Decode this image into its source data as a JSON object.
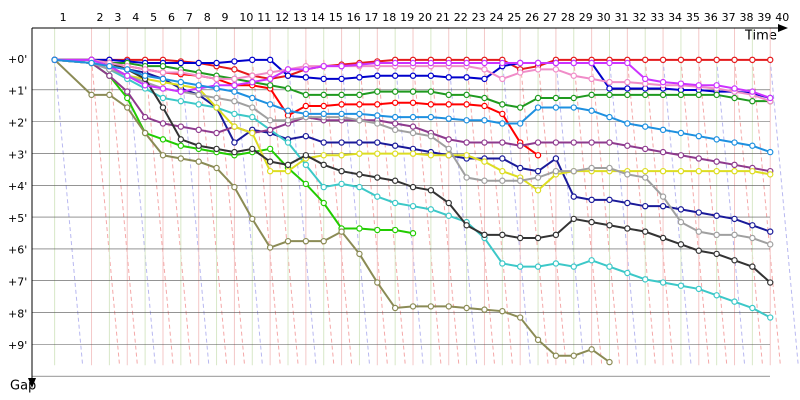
{
  "chart_data": {
    "type": "line",
    "x_label": "Time",
    "y_label": "Gap",
    "xlim": [
      0,
      64.5
    ],
    "ylim": [
      -1,
      10
    ],
    "x": [
      1.9,
      5,
      6.5,
      8,
      9.5,
      11,
      12.5,
      14,
      15.5,
      17,
      18.5,
      20,
      21.5,
      23,
      24.5,
      26,
      27.5,
      29,
      30.5,
      32,
      33.5,
      35,
      36.5,
      38,
      39.5,
      41,
      42.5,
      44,
      45.5,
      47,
      48.5,
      50,
      51.5,
      53,
      54.5,
      56,
      57.5,
      59,
      60.5,
      62
    ],
    "xticks": [
      {
        "value": 1.9,
        "label": "1"
      },
      {
        "value": 5,
        "label": "2"
      },
      {
        "value": 6.5,
        "label": "3"
      },
      {
        "value": 8,
        "label": "4"
      },
      {
        "value": 9.5,
        "label": "5"
      },
      {
        "value": 11,
        "label": "6"
      },
      {
        "value": 12.5,
        "label": "7"
      },
      {
        "value": 14,
        "label": "8"
      },
      {
        "value": 15.5,
        "label": "9"
      },
      {
        "value": 17,
        "label": "10"
      },
      {
        "value": 18.5,
        "label": "11"
      },
      {
        "value": 20,
        "label": "12"
      },
      {
        "value": 21.5,
        "label": "13"
      },
      {
        "value": 23,
        "label": "14"
      },
      {
        "value": 24.5,
        "label": "15"
      },
      {
        "value": 26,
        "label": "16"
      },
      {
        "value": 27.5,
        "label": "17"
      },
      {
        "value": 29,
        "label": "18"
      },
      {
        "value": 30.5,
        "label": "19"
      },
      {
        "value": 32,
        "label": "20"
      },
      {
        "value": 33.5,
        "label": "21"
      },
      {
        "value": 35,
        "label": "22"
      },
      {
        "value": 36.5,
        "label": "23"
      },
      {
        "value": 38,
        "label": "24"
      },
      {
        "value": 39.5,
        "label": "25"
      },
      {
        "value": 41,
        "label": "26"
      },
      {
        "value": 42.5,
        "label": "27"
      },
      {
        "value": 44,
        "label": "28"
      },
      {
        "value": 45.5,
        "label": "29"
      },
      {
        "value": 47,
        "label": "30"
      },
      {
        "value": 48.5,
        "label": "31"
      },
      {
        "value": 50,
        "label": "32"
      },
      {
        "value": 51.5,
        "label": "33"
      },
      {
        "value": 53,
        "label": "34"
      },
      {
        "value": 54.5,
        "label": "35"
      },
      {
        "value": 56,
        "label": "36"
      },
      {
        "value": 57.5,
        "label": "37"
      },
      {
        "value": 59,
        "label": "38"
      },
      {
        "value": 60.5,
        "label": "39"
      },
      {
        "value": 62,
        "label": "40"
      }
    ],
    "yticks": [
      {
        "value": 0,
        "label": "+0'"
      },
      {
        "value": 1,
        "label": "+1'"
      },
      {
        "value": 2,
        "label": "+2'"
      },
      {
        "value": 3,
        "label": "+3'"
      },
      {
        "value": 4,
        "label": "+4'"
      },
      {
        "value": 5,
        "label": "+5'"
      },
      {
        "value": 6,
        "label": "+6'"
      },
      {
        "value": 7,
        "label": "+7'"
      },
      {
        "value": 8,
        "label": "+8'"
      },
      {
        "value": 9,
        "label": "+9'"
      }
    ],
    "grid": true,
    "series": [
      {
        "color": "#e41a1c",
        "values": [
          0,
          0,
          0,
          0,
          0,
          0,
          0.05,
          0.1,
          0.2,
          0.3,
          0.5,
          0.6,
          0.5,
          0.3,
          0.2,
          0.15,
          0.1,
          0.05,
          0,
          0,
          0,
          0,
          0,
          0,
          0,
          0.3,
          0.2,
          0,
          0,
          0,
          0,
          0,
          0,
          0,
          0,
          0,
          0,
          0,
          0,
          0
        ]
      },
      {
        "color": "#ff0000",
        "values": [
          0,
          0,
          0.1,
          0.2,
          0.3,
          0.4,
          0.45,
          0.5,
          0.6,
          0.8,
          0.8,
          0.9,
          1.75,
          1.45,
          1.45,
          1.4,
          1.4,
          1.4,
          1.35,
          1.35,
          1.4,
          1.4,
          1.4,
          1.45,
          1.7,
          2.6,
          3.0,
          null,
          null,
          null,
          null,
          null,
          null,
          null,
          null,
          null,
          null,
          null,
          null,
          null
        ]
      },
      {
        "color": "#0000cc",
        "values": [
          0,
          0,
          0,
          0.05,
          0.1,
          0.1,
          0.1,
          0.1,
          0.1,
          0.05,
          0,
          0,
          0.5,
          0.55,
          0.6,
          0.6,
          0.55,
          0.5,
          0.5,
          0.5,
          0.5,
          0.55,
          0.55,
          0.6,
          0.2,
          0.1,
          0.1,
          0.1,
          0.1,
          0.1,
          0.9,
          0.9,
          0.9,
          0.9,
          0.95,
          0.95,
          1.0,
          1.0,
          1.05,
          1.2
        ]
      },
      {
        "color": "#1a1a99",
        "values": [
          0,
          0.1,
          0.2,
          0.3,
          0.4,
          0.6,
          0.9,
          1.1,
          1.5,
          2.6,
          2.2,
          2.3,
          2.5,
          2.4,
          2.6,
          2.6,
          2.6,
          2.6,
          2.7,
          2.8,
          2.9,
          3.0,
          3.1,
          3.1,
          3.1,
          3.4,
          3.5,
          3.1,
          4.3,
          4.4,
          4.4,
          4.5,
          4.6,
          4.6,
          4.7,
          4.8,
          4.9,
          5.0,
          5.2,
          5.4
        ]
      },
      {
        "color": "#1f9a1f",
        "values": [
          0,
          0,
          0.1,
          0.1,
          0.2,
          0.2,
          0.3,
          0.4,
          0.5,
          0.6,
          0.7,
          0.8,
          0.9,
          1.1,
          1.1,
          1.1,
          1.1,
          1.0,
          1.0,
          1.0,
          1.0,
          1.1,
          1.1,
          1.2,
          1.4,
          1.5,
          1.2,
          1.2,
          1.2,
          1.1,
          1.1,
          1.1,
          1.1,
          1.1,
          1.1,
          1.1,
          1.1,
          1.2,
          1.3,
          1.3
        ]
      },
      {
        "color": "#22cc00",
        "values": [
          0,
          0.1,
          0.5,
          1.2,
          2.3,
          2.5,
          2.7,
          2.8,
          2.9,
          3.0,
          2.9,
          2.8,
          3.4,
          3.9,
          4.5,
          5.3,
          5.3,
          5.35,
          5.35,
          5.45,
          null,
          null,
          null,
          null,
          null,
          null,
          null,
          null,
          null,
          null,
          null,
          null,
          null,
          null,
          null,
          null,
          null,
          null,
          null,
          null
        ]
      },
      {
        "color": "#8b8b55",
        "values": [
          0,
          1.1,
          1.1,
          1.5,
          2.3,
          3.0,
          3.1,
          3.2,
          3.4,
          4.0,
          5.0,
          5.9,
          5.7,
          5.7,
          5.7,
          5.4,
          6.1,
          7.0,
          7.8,
          7.75,
          7.75,
          7.75,
          7.8,
          7.85,
          7.9,
          8.1,
          8.8,
          9.3,
          9.3,
          9.1,
          9.5,
          null,
          null,
          null,
          null,
          null,
          null,
          null,
          null,
          null
        ]
      },
      {
        "color": "#3cc8c8",
        "values": [
          0,
          0.1,
          0.3,
          0.6,
          0.9,
          1.2,
          1.3,
          1.4,
          1.5,
          1.7,
          1.8,
          2.2,
          2.6,
          3.3,
          4.0,
          3.9,
          4.0,
          4.3,
          4.5,
          4.6,
          4.7,
          4.9,
          5.1,
          5.6,
          6.4,
          6.5,
          6.5,
          6.4,
          6.5,
          6.3,
          6.5,
          6.7,
          6.9,
          7.0,
          7.1,
          7.2,
          7.4,
          7.6,
          7.8,
          8.1
        ]
      },
      {
        "color": "#8e3a8e",
        "values": [
          0,
          0.1,
          0.5,
          1.0,
          1.8,
          2.0,
          2.1,
          2.2,
          2.3,
          2.1,
          2.3,
          2.2,
          2.0,
          1.8,
          1.9,
          1.9,
          1.9,
          1.9,
          2.0,
          2.1,
          2.3,
          2.5,
          2.6,
          2.6,
          2.6,
          2.7,
          2.6,
          2.6,
          2.6,
          2.6,
          2.6,
          2.7,
          2.8,
          2.9,
          3.0,
          3.1,
          3.2,
          3.3,
          3.4,
          3.5
        ]
      },
      {
        "color": "#dddd22",
        "values": [
          0,
          0.1,
          0.2,
          0.5,
          0.6,
          0.7,
          0.8,
          0.9,
          1.5,
          2.1,
          2.3,
          3.5,
          3.5,
          3.1,
          3.0,
          3.0,
          2.95,
          2.95,
          2.95,
          2.95,
          3.0,
          3.0,
          3.0,
          3.2,
          3.5,
          3.7,
          4.1,
          3.6,
          3.5,
          3.5,
          3.5,
          3.5,
          3.5,
          3.5,
          3.5,
          3.5,
          3.5,
          3.5,
          3.5,
          3.6
        ]
      },
      {
        "color": "#a0a0a0",
        "values": [
          0,
          0.1,
          0.3,
          0.5,
          0.7,
          0.9,
          1.0,
          1.1,
          1.2,
          1.3,
          1.5,
          1.9,
          1.9,
          1.8,
          1.8,
          1.8,
          1.9,
          2.0,
          2.2,
          2.3,
          2.4,
          2.8,
          3.7,
          3.8,
          3.8,
          3.8,
          3.7,
          3.5,
          3.5,
          3.4,
          3.4,
          3.6,
          3.7,
          4.3,
          5.1,
          5.4,
          5.5,
          5.5,
          5.6,
          5.8
        ]
      },
      {
        "color": "#333333",
        "values": [
          0,
          0,
          0.1,
          0.3,
          0.6,
          1.5,
          2.5,
          2.7,
          2.8,
          2.9,
          2.8,
          3.2,
          3.3,
          3.0,
          3.3,
          3.5,
          3.6,
          3.7,
          3.8,
          4.0,
          4.1,
          4.5,
          5.2,
          5.5,
          5.5,
          5.6,
          5.6,
          5.5,
          5.0,
          5.1,
          5.2,
          5.3,
          5.4,
          5.6,
          5.8,
          6.0,
          6.1,
          6.3,
          6.5,
          7.0
        ]
      },
      {
        "color": "#f08cc8",
        "values": [
          0,
          0,
          0.1,
          0.2,
          0.3,
          0.4,
          0.4,
          0.5,
          0.6,
          0.6,
          0.5,
          0.4,
          0.3,
          0.2,
          0.2,
          0.2,
          0.2,
          0.2,
          0.2,
          0.2,
          0.2,
          0.2,
          0.2,
          0.3,
          0.6,
          0.4,
          0.3,
          0.3,
          0.5,
          0.6,
          0.7,
          0.7,
          0.75,
          0.8,
          0.8,
          0.85,
          0.9,
          1.0,
          1.1,
          1.3
        ]
      },
      {
        "color": "#cc33ff",
        "values": [
          0,
          0,
          0.2,
          0.5,
          0.8,
          0.9,
          1.0,
          0.9,
          0.8,
          0.8,
          0.7,
          0.6,
          0.3,
          0.3,
          0.2,
          0.2,
          0.15,
          0.1,
          0.1,
          0.1,
          0.1,
          0.1,
          0.1,
          0.1,
          0.1,
          0.1,
          0.1,
          0.1,
          0.1,
          0.1,
          0.1,
          0.1,
          0.6,
          0.7,
          0.75,
          0.8,
          0.8,
          0.9,
          1.0,
          1.2
        ]
      },
      {
        "color": "#1e90e0",
        "values": [
          0,
          0.1,
          0.2,
          0.3,
          0.5,
          0.6,
          0.7,
          0.8,
          0.9,
          1.0,
          1.2,
          1.4,
          1.6,
          1.7,
          1.7,
          1.7,
          1.7,
          1.75,
          1.8,
          1.8,
          1.8,
          1.85,
          1.9,
          1.9,
          2.0,
          2.0,
          1.5,
          1.5,
          1.5,
          1.6,
          1.8,
          2.0,
          2.1,
          2.2,
          2.3,
          2.4,
          2.5,
          2.6,
          2.7,
          2.9
        ]
      }
    ]
  }
}
